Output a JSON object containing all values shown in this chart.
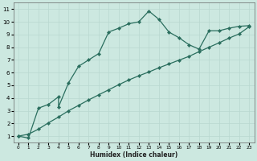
{
  "xlabel": "Humidex (Indice chaleur)",
  "bg_color": "#cce8e0",
  "grid_color": "#b8d8d0",
  "line_color": "#2a6e5e",
  "xlim": [
    -0.5,
    23.5
  ],
  "ylim": [
    0.5,
    11.5
  ],
  "xticks": [
    0,
    1,
    2,
    3,
    4,
    5,
    6,
    7,
    8,
    9,
    10,
    11,
    12,
    13,
    14,
    15,
    16,
    17,
    18,
    19,
    20,
    21,
    22,
    23
  ],
  "yticks": [
    1,
    2,
    3,
    4,
    5,
    6,
    7,
    8,
    9,
    10,
    11
  ],
  "line1_x": [
    0,
    1,
    2,
    3,
    4,
    4,
    5,
    6,
    7,
    8,
    9,
    10,
    11,
    12,
    13,
    14,
    15,
    16,
    17,
    18,
    19,
    20,
    21,
    22,
    23
  ],
  "line1_y": [
    1.0,
    0.85,
    3.2,
    3.5,
    4.1,
    3.3,
    5.2,
    6.5,
    7.0,
    7.5,
    9.2,
    9.5,
    9.85,
    10.0,
    10.85,
    10.2,
    9.2,
    8.75,
    8.2,
    7.85,
    9.3,
    9.3,
    9.5,
    9.65,
    9.7
  ],
  "line2_x": [
    0,
    1,
    2,
    3,
    4,
    5,
    6,
    7,
    8,
    9,
    10,
    11,
    12,
    13,
    14,
    15,
    16,
    17,
    18,
    19,
    20,
    21,
    22,
    23
  ],
  "line2_y": [
    1.0,
    1.15,
    1.55,
    2.05,
    2.5,
    3.0,
    3.42,
    3.85,
    4.25,
    4.65,
    5.05,
    5.42,
    5.75,
    6.05,
    6.38,
    6.68,
    6.98,
    7.28,
    7.65,
    8.0,
    8.35,
    8.72,
    9.05,
    9.62
  ]
}
